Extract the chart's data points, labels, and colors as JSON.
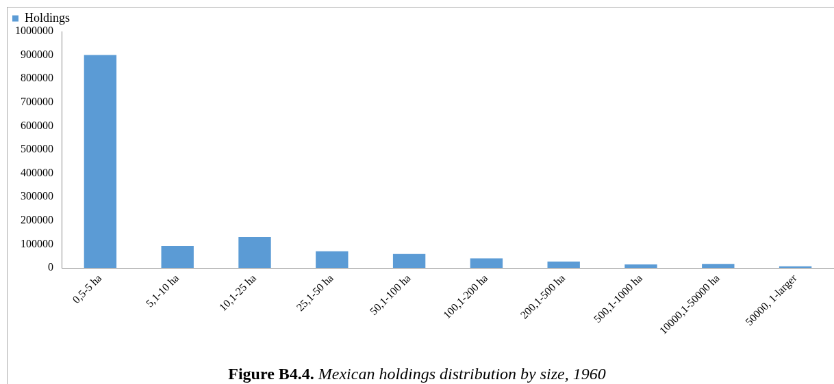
{
  "chart_data": {
    "type": "bar",
    "title": "Figure B4.4. Mexican holdings distribution by size, 1960",
    "categories": [
      "0,5-5 ha",
      "5,1-10 ha",
      "10,1-25 ha",
      "25,1-50 ha",
      "50,1-100 ha",
      "100,1-200 ha",
      "200,1-500 ha",
      "500,1-1000 ha",
      "10000,1-50000 ha",
      "50000, 1-larger"
    ],
    "series": [
      {
        "name": "Holdings",
        "color": "#5b9bd5",
        "values": [
          900000,
          93000,
          130000,
          70000,
          59000,
          40000,
          27000,
          15000,
          17000,
          7000
        ]
      }
    ],
    "ylim": [
      0,
      1000000
    ],
    "yticks": [
      0,
      100000,
      200000,
      300000,
      400000,
      500000,
      600000,
      700000,
      800000,
      900000,
      1000000
    ],
    "grid": false,
    "legend": "top left"
  }
}
